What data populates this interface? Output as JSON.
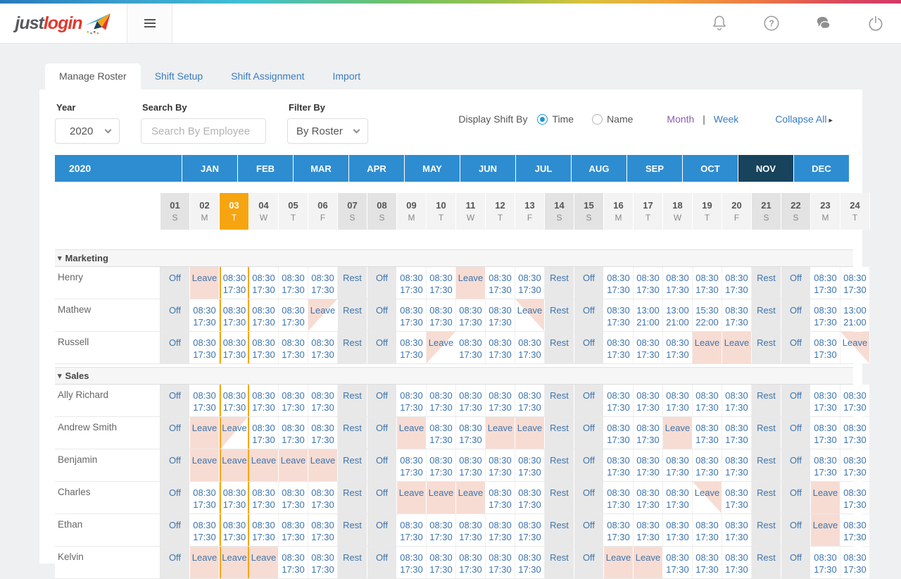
{
  "header": {
    "logo_part1": "just",
    "logo_part2": "login",
    "icons": {
      "notifications": "bell-icon",
      "help": "question-circle-icon",
      "chat": "chat-bubbles-icon",
      "logout": "power-icon",
      "menu": "hamburger-icon"
    }
  },
  "tabs": [
    {
      "label": "Manage Roster",
      "active": true
    },
    {
      "label": "Shift Setup",
      "active": false
    },
    {
      "label": "Shift Assignment",
      "active": false
    },
    {
      "label": "Import",
      "active": false
    }
  ],
  "filters": {
    "year_label": "Year",
    "year_value": "2020",
    "search_label": "Search By",
    "search_placeholder": "Search By Employee",
    "filter_label": "Filter By",
    "filter_value": "By Roster"
  },
  "display": {
    "label": "Display Shift By",
    "option_time": "Time",
    "option_name": "Name",
    "selected_option": "Time",
    "month_link": "Month",
    "separator": "|",
    "week_link": "Week",
    "collapse_all": "Collapse All",
    "collapse_caret": "▸"
  },
  "month_nav": {
    "year": "2020",
    "months": [
      "JAN",
      "FEB",
      "MAR",
      "APR",
      "MAY",
      "JUN",
      "JUL",
      "AUG",
      "SEP",
      "OCT",
      "NOV",
      "DEC"
    ],
    "selected": "NOV"
  },
  "days": [
    {
      "num": "01",
      "dow": "S",
      "weekend": true
    },
    {
      "num": "02",
      "dow": "M"
    },
    {
      "num": "03",
      "dow": "T",
      "today": true
    },
    {
      "num": "04",
      "dow": "W"
    },
    {
      "num": "05",
      "dow": "T"
    },
    {
      "num": "06",
      "dow": "F"
    },
    {
      "num": "07",
      "dow": "S",
      "weekend": true
    },
    {
      "num": "08",
      "dow": "S",
      "weekend": true
    },
    {
      "num": "09",
      "dow": "M"
    },
    {
      "num": "10",
      "dow": "T"
    },
    {
      "num": "11",
      "dow": "W"
    },
    {
      "num": "12",
      "dow": "T"
    },
    {
      "num": "13",
      "dow": "F"
    },
    {
      "num": "14",
      "dow": "S",
      "weekend": true
    },
    {
      "num": "15",
      "dow": "S",
      "weekend": true
    },
    {
      "num": "16",
      "dow": "M"
    },
    {
      "num": "17",
      "dow": "T"
    },
    {
      "num": "18",
      "dow": "W"
    },
    {
      "num": "19",
      "dow": "T"
    },
    {
      "num": "20",
      "dow": "F"
    },
    {
      "num": "21",
      "dow": "S",
      "weekend": true
    },
    {
      "num": "22",
      "dow": "S",
      "weekend": true
    },
    {
      "num": "23",
      "dow": "M"
    },
    {
      "num": "24",
      "dow": "T"
    }
  ],
  "cell_labels": {
    "O": "Off",
    "R": "Rest",
    "L": "Leave",
    "La": "Leave",
    "Lb": "Leave"
  },
  "shift_codes": {
    "T": [
      "08:30",
      "17:30"
    ],
    "E": [
      "13:00",
      "21:00"
    ],
    "N": [
      "15:30",
      "22:00"
    ]
  },
  "group_caret": "▾",
  "groups": [
    {
      "name": "Marketing",
      "rows": [
        {
          "name": "Henry",
          "cells": [
            "O",
            "L",
            "T",
            "T",
            "T",
            "T",
            "R",
            "O",
            "T",
            "T",
            "L",
            "T",
            "T",
            "R",
            "O",
            "T",
            "T",
            "T",
            "T",
            "T",
            "R",
            "O",
            "T",
            "T"
          ]
        },
        {
          "name": "Mathew",
          "cells": [
            "O",
            "T",
            "T",
            "T",
            "T",
            "La",
            "R",
            "O",
            "T",
            "T",
            "T",
            "T",
            "Lb",
            "R",
            "O",
            "T",
            "E",
            "E",
            "N",
            "T",
            "R",
            "O",
            "T",
            "E"
          ]
        },
        {
          "name": "Russell",
          "cells": [
            "O",
            "T",
            "T",
            "T",
            "T",
            "T",
            "R",
            "O",
            "T",
            "La",
            "T",
            "T",
            "T",
            "R",
            "O",
            "T",
            "T",
            "T",
            "L",
            "L",
            "R",
            "O",
            "T",
            "Lb"
          ]
        }
      ]
    },
    {
      "name": "Sales",
      "rows": [
        {
          "name": "Ally Richard",
          "cells": [
            "O",
            "T",
            "T",
            "T",
            "T",
            "T",
            "R",
            "O",
            "T",
            "T",
            "T",
            "T",
            "T",
            "R",
            "O",
            "T",
            "T",
            "T",
            "T",
            "T",
            "R",
            "O",
            "T",
            "T"
          ]
        },
        {
          "name": "Andrew Smith",
          "cells": [
            "O",
            "L",
            "La",
            "T",
            "T",
            "T",
            "R",
            "O",
            "L",
            "T",
            "T",
            "L",
            "L",
            "R",
            "O",
            "T",
            "T",
            "L",
            "T",
            "T",
            "R",
            "O",
            "T",
            "T"
          ]
        },
        {
          "name": "Benjamin",
          "cells": [
            "O",
            "L",
            "L",
            "L",
            "L",
            "L",
            "R",
            "O",
            "T",
            "T",
            "T",
            "T",
            "T",
            "R",
            "O",
            "T",
            "T",
            "T",
            "T",
            "T",
            "R",
            "O",
            "T",
            "T"
          ]
        },
        {
          "name": "Charles",
          "cells": [
            "O",
            "T",
            "T",
            "T",
            "T",
            "T",
            "R",
            "O",
            "L",
            "L",
            "L",
            "T",
            "T",
            "R",
            "O",
            "T",
            "T",
            "T",
            "Lb",
            "T",
            "R",
            "O",
            "L",
            "T"
          ]
        },
        {
          "name": "Ethan",
          "cells": [
            "O",
            "T",
            "T",
            "T",
            "T",
            "T",
            "R",
            "O",
            "T",
            "T",
            "T",
            "T",
            "T",
            "R",
            "O",
            "T",
            "T",
            "T",
            "T",
            "T",
            "R",
            "O",
            "L",
            "T"
          ]
        },
        {
          "name": "Kelvin",
          "cells": [
            "O",
            "L",
            "L",
            "L",
            "T",
            "T",
            "R",
            "O",
            "T",
            "T",
            "T",
            "T",
            "T",
            "R",
            "O",
            "L",
            "L",
            "T",
            "T",
            "T",
            "R",
            "O",
            "T",
            "T"
          ]
        }
      ]
    }
  ],
  "colors": {
    "brand_red": "#e2382e",
    "month_bar_blue": "#2e8dd0",
    "month_selected_navy": "#17435c",
    "today_orange": "#f6a511",
    "leave_pink": "#f7dcd3",
    "weekend_gray": "#e8e8e8",
    "cell_text_blue": "#3d74ad",
    "link_blue": "#3a7cc0",
    "link_purple": "#8a5fb0"
  }
}
